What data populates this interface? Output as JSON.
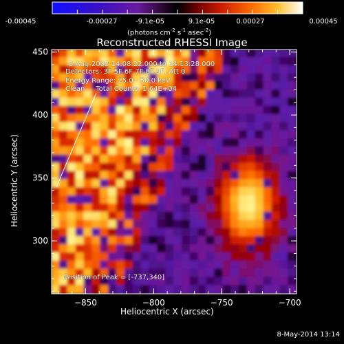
{
  "colorbar": {
    "ticks": [
      "-0.00045",
      "-0.00027",
      "-9.1e-05",
      "9.1e-05",
      "0.00027",
      "0.00045"
    ],
    "units": "(photons cm",
    "units_exp1": "-2",
    "units_mid": " s",
    "units_exp2": "-1",
    "units_mid2": " asec",
    "units_exp3": "-2",
    "units_end": ")",
    "colors": [
      "#0000ff",
      "#2a00c0",
      "#5a1aa8",
      "#7a2080",
      "#000000",
      "#a01000",
      "#e03000",
      "#ff7000",
      "#ffc030",
      "#ffffa0",
      "#ffffff"
    ]
  },
  "chart_data": {
    "type": "heatmap",
    "title": "Reconstructed RHESSI Image",
    "xlabel": "Heliocentric X (arcsec)",
    "ylabel": "Heliocentric Y (arcsec)",
    "xlim": [
      -875,
      -695
    ],
    "ylim": [
      258,
      452
    ],
    "x_ticks": [
      -850,
      -800,
      -750,
      -700
    ],
    "x_tick_labels": [
      "−850",
      "−800",
      "−750",
      "−700"
    ],
    "y_ticks": [
      300,
      350,
      400,
      450
    ],
    "y_tick_labels": [
      "300",
      "350",
      "400",
      "450"
    ],
    "annotations": {
      "time_range": "3-Aug-2002 14:08:22.000 to 14:13:28.000",
      "detectors": "Detectors: 3F 5F 6F 7F 8F 9F, Att 0",
      "energy": "Energy Range: 25.0 - 50.0 keV",
      "method": "Clean     Total Counts: 1.64E+04",
      "peak": "Position of Peak = [-737,340]"
    }
  },
  "timestamp": "8-May-2014 13:14"
}
